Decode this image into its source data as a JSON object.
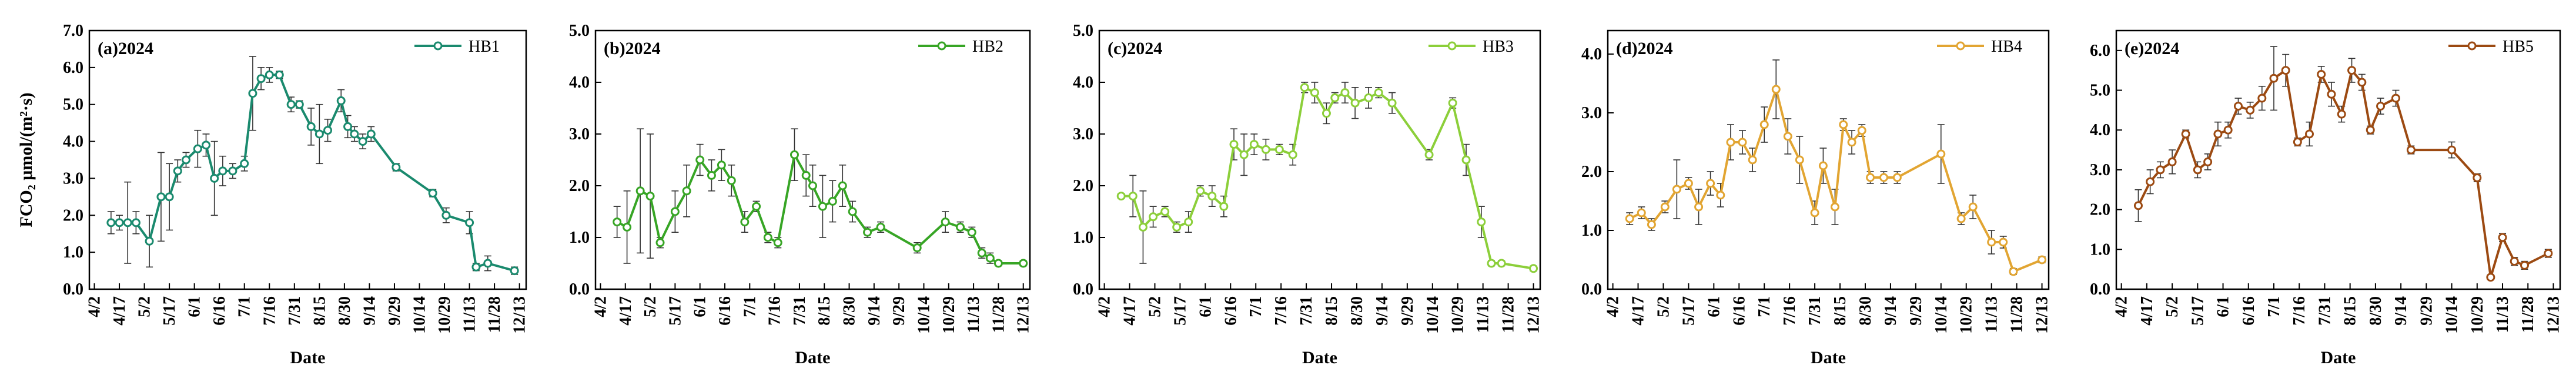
{
  "chart_data": [
    {
      "type": "line",
      "title": "(a)2024",
      "xlabel": "Date",
      "ylabel": "FCO₂ μmol/(m²·s)",
      "series_name": "HB1",
      "color": "#1a8a6e",
      "ylim": [
        0,
        7
      ],
      "yticks": [
        "0.0",
        "1.0",
        "2.0",
        "3.0",
        "4.0",
        "5.0",
        "6.0",
        "7.0"
      ],
      "xticks": [
        "4/2",
        "4/17",
        "5/2",
        "5/17",
        "6/1",
        "6/16",
        "7/1",
        "7/16",
        "7/31",
        "8/15",
        "8/30",
        "9/14",
        "9/29",
        "10/14",
        "10/29",
        "11/13",
        "11/28",
        "12/13"
      ],
      "legend": "top-right",
      "x": [
        "4/12",
        "4/17",
        "4/22",
        "4/27",
        "5/5",
        "5/12",
        "5/17",
        "5/22",
        "5/27",
        "6/3",
        "6/8",
        "6/13",
        "6/18",
        "6/24",
        "7/1",
        "7/6",
        "7/11",
        "7/16",
        "7/22",
        "7/29",
        "8/3",
        "8/10",
        "8/15",
        "8/20",
        "8/28",
        "9/1",
        "9/5",
        "9/10",
        "9/15",
        "9/30",
        "10/22",
        "10/30",
        "11/13",
        "11/17",
        "11/24",
        "12/10"
      ],
      "y": [
        1.8,
        1.8,
        1.8,
        1.8,
        1.3,
        2.5,
        2.5,
        3.2,
        3.5,
        3.8,
        3.9,
        3.0,
        3.2,
        3.2,
        3.4,
        5.3,
        5.7,
        5.8,
        5.8,
        5.0,
        5.0,
        4.4,
        4.2,
        4.3,
        5.1,
        4.4,
        4.2,
        4.0,
        4.2,
        3.3,
        2.6,
        2.0,
        1.8,
        0.6,
        0.7,
        0.5
      ],
      "err": [
        0.3,
        0.2,
        1.1,
        0.3,
        0.7,
        1.2,
        0.9,
        0.3,
        0.2,
        0.5,
        0.3,
        1.0,
        0.4,
        0.2,
        0.2,
        1.0,
        0.3,
        0.2,
        0.1,
        0.2,
        0.1,
        0.5,
        0.8,
        0.3,
        0.3,
        0.3,
        0.2,
        0.2,
        0.2,
        0.1,
        0.1,
        0.2,
        0.3,
        0.1,
        0.2,
        0.1
      ]
    },
    {
      "type": "line",
      "title": "(b)2024",
      "xlabel": "Date",
      "ylabel": "",
      "series_name": "HB2",
      "color": "#37a525",
      "ylim": [
        0,
        5
      ],
      "yticks": [
        "0.0",
        "1.0",
        "2.0",
        "3.0",
        "4.0",
        "5.0"
      ],
      "xticks": [
        "4/2",
        "4/17",
        "5/2",
        "5/17",
        "6/1",
        "6/16",
        "7/1",
        "7/16",
        "7/31",
        "8/15",
        "8/30",
        "9/14",
        "9/29",
        "10/14",
        "10/29",
        "11/13",
        "11/28",
        "12/13"
      ],
      "legend": "top-right",
      "x": [
        "4/12",
        "4/18",
        "4/26",
        "5/2",
        "5/8",
        "5/17",
        "5/24",
        "6/1",
        "6/8",
        "6/14",
        "6/20",
        "6/28",
        "7/5",
        "7/12",
        "7/18",
        "7/28",
        "8/4",
        "8/8",
        "8/14",
        "8/20",
        "8/26",
        "9/1",
        "9/10",
        "9/18",
        "10/10",
        "10/27",
        "11/5",
        "11/12",
        "11/18",
        "11/23",
        "11/28",
        "12/13"
      ],
      "y": [
        1.3,
        1.2,
        1.9,
        1.8,
        0.9,
        1.5,
        1.9,
        2.5,
        2.2,
        2.4,
        2.1,
        1.3,
        1.6,
        1.0,
        0.9,
        2.6,
        2.2,
        2.0,
        1.6,
        1.7,
        2.0,
        1.5,
        1.1,
        1.2,
        0.8,
        1.3,
        1.2,
        1.1,
        0.7,
        0.6,
        0.5,
        0.5
      ],
      "err": [
        0.3,
        0.7,
        1.2,
        1.2,
        0.1,
        0.4,
        0.5,
        0.3,
        0.3,
        0.3,
        0.3,
        0.2,
        0.1,
        0.1,
        0.1,
        0.5,
        0.4,
        0.4,
        0.6,
        0.4,
        0.4,
        0.2,
        0.1,
        0.1,
        0.1,
        0.2,
        0.1,
        0.1,
        0.1,
        0.1,
        0.05,
        0.05
      ]
    },
    {
      "type": "line",
      "title": "(c)2024",
      "xlabel": "Date",
      "ylabel": "",
      "series_name": "HB3",
      "color": "#8ccf3a",
      "ylim": [
        0,
        5
      ],
      "yticks": [
        "0.0",
        "1.0",
        "2.0",
        "3.0",
        "4.0",
        "5.0"
      ],
      "xticks": [
        "4/2",
        "4/17",
        "5/2",
        "5/17",
        "6/1",
        "6/16",
        "7/1",
        "7/16",
        "7/31",
        "8/15",
        "8/30",
        "9/14",
        "9/29",
        "10/14",
        "10/29",
        "11/13",
        "11/28",
        "12/13"
      ],
      "legend": "top-right",
      "x": [
        "4/12",
        "4/19",
        "4/25",
        "5/1",
        "5/8",
        "5/15",
        "5/22",
        "5/29",
        "6/5",
        "6/12",
        "6/18",
        "6/24",
        "6/30",
        "7/7",
        "7/15",
        "7/23",
        "7/30",
        "8/5",
        "8/12",
        "8/17",
        "8/23",
        "8/29",
        "9/6",
        "9/12",
        "9/20",
        "10/12",
        "10/26",
        "11/3",
        "11/12",
        "11/18",
        "11/24",
        "12/13"
      ],
      "y": [
        1.8,
        1.8,
        1.2,
        1.4,
        1.5,
        1.2,
        1.3,
        1.9,
        1.8,
        1.6,
        2.8,
        2.6,
        2.8,
        2.7,
        2.7,
        2.6,
        3.9,
        3.8,
        3.4,
        3.7,
        3.8,
        3.6,
        3.7,
        3.8,
        3.6,
        2.6,
        3.6,
        2.5,
        1.3,
        0.5,
        0.5,
        0.4
      ],
      "err": [
        0.05,
        0.4,
        0.7,
        0.2,
        0.1,
        0.1,
        0.2,
        0.1,
        0.2,
        0.2,
        0.3,
        0.4,
        0.2,
        0.2,
        0.1,
        0.2,
        0.1,
        0.2,
        0.2,
        0.1,
        0.2,
        0.3,
        0.2,
        0.1,
        0.2,
        0.1,
        0.1,
        0.3,
        0.3,
        0.05,
        0.05,
        0.05
      ]
    },
    {
      "type": "line",
      "title": "(d)2024",
      "xlabel": "Date",
      "ylabel": "",
      "series_name": "HB4",
      "color": "#e2a532",
      "ylim": [
        0,
        4.4
      ],
      "yticks": [
        "0.0",
        "1.0",
        "2.0",
        "3.0",
        "4.0"
      ],
      "xticks": [
        "4/2",
        "4/17",
        "5/2",
        "5/17",
        "6/1",
        "6/16",
        "7/1",
        "7/16",
        "7/31",
        "8/15",
        "8/30",
        "9/14",
        "9/29",
        "10/14",
        "10/29",
        "11/13",
        "11/28",
        "12/13"
      ],
      "legend": "top-right",
      "x": [
        "4/12",
        "4/19",
        "4/25",
        "5/3",
        "5/10",
        "5/17",
        "5/23",
        "5/30",
        "6/5",
        "6/11",
        "6/18",
        "6/24",
        "7/1",
        "7/8",
        "7/15",
        "7/22",
        "7/31",
        "8/5",
        "8/12",
        "8/17",
        "8/22",
        "8/28",
        "9/2",
        "9/10",
        "9/18",
        "10/14",
        "10/26",
        "11/2",
        "11/13",
        "11/20",
        "11/26",
        "12/13"
      ],
      "y": [
        1.2,
        1.3,
        1.1,
        1.4,
        1.7,
        1.8,
        1.4,
        1.8,
        1.6,
        2.5,
        2.5,
        2.2,
        2.8,
        3.4,
        2.6,
        2.2,
        1.3,
        2.1,
        1.4,
        2.8,
        2.5,
        2.7,
        1.9,
        1.9,
        1.9,
        2.3,
        1.2,
        1.4,
        0.8,
        0.8,
        0.3,
        0.5
      ],
      "err": [
        0.1,
        0.1,
        0.1,
        0.1,
        0.5,
        0.1,
        0.3,
        0.2,
        0.2,
        0.3,
        0.2,
        0.2,
        0.3,
        0.5,
        0.3,
        0.4,
        0.2,
        0.3,
        0.3,
        0.1,
        0.2,
        0.1,
        0.1,
        0.1,
        0.1,
        0.5,
        0.1,
        0.2,
        0.2,
        0.1,
        0.05,
        0.05
      ]
    },
    {
      "type": "line",
      "title": "(e)2024",
      "xlabel": "Date",
      "ylabel": "",
      "series_name": "HB5",
      "color": "#9c4a12",
      "ylim": [
        0,
        6.5
      ],
      "yticks": [
        "0.0",
        "1.0",
        "2.0",
        "3.0",
        "4.0",
        "5.0",
        "6.0"
      ],
      "xticks": [
        "4/2",
        "4/17",
        "5/2",
        "5/17",
        "6/1",
        "6/16",
        "7/1",
        "7/16",
        "7/31",
        "8/15",
        "8/30",
        "9/14",
        "9/29",
        "10/14",
        "10/29",
        "11/13",
        "11/28",
        "12/13"
      ],
      "legend": "top-right",
      "x": [
        "4/12",
        "4/19",
        "4/25",
        "5/2",
        "5/10",
        "5/17",
        "5/23",
        "5/29",
        "6/4",
        "6/10",
        "6/17",
        "6/24",
        "7/1",
        "7/8",
        "7/15",
        "7/22",
        "7/29",
        "8/4",
        "8/10",
        "8/16",
        "8/22",
        "8/27",
        "9/2",
        "9/11",
        "9/20",
        "10/14",
        "10/29",
        "11/6",
        "11/13",
        "11/20",
        "11/26",
        "12/10"
      ],
      "y": [
        2.1,
        2.7,
        3.0,
        3.2,
        3.9,
        3.0,
        3.2,
        3.9,
        4.0,
        4.6,
        4.5,
        4.8,
        5.3,
        5.5,
        3.7,
        3.9,
        5.4,
        4.9,
        4.4,
        5.5,
        5.2,
        4.0,
        4.6,
        4.8,
        3.5,
        3.5,
        2.8,
        0.3,
        1.3,
        0.7,
        0.6,
        0.9
      ],
      "err": [
        0.4,
        0.3,
        0.2,
        0.3,
        0.1,
        0.2,
        0.2,
        0.3,
        0.2,
        0.2,
        0.2,
        0.3,
        0.8,
        0.4,
        0.1,
        0.3,
        0.2,
        0.3,
        0.2,
        0.3,
        0.2,
        0.1,
        0.2,
        0.2,
        0.1,
        0.2,
        0.1,
        0.05,
        0.1,
        0.1,
        0.1,
        0.1
      ]
    }
  ]
}
